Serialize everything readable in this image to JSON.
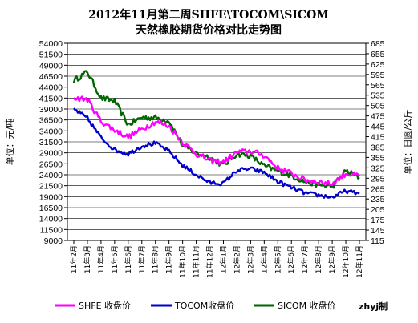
{
  "chart_data": {
    "type": "line",
    "title": "2012年11月第二周SHFE\\TOCOM\\SICOM",
    "subtitle": "天然橡胶期货价格对比走势图",
    "ylabel_left": "单位：元/吨",
    "ylabel_right": "单位：日圆/公斤",
    "ylim_left": [
      9000,
      54000
    ],
    "ylim_right": [
      115,
      685
    ],
    "yticks_left": [
      "54000",
      "51500",
      "49000",
      "46500",
      "44000",
      "41500",
      "39000",
      "36500",
      "34000",
      "31500",
      "29000",
      "26500",
      "24000",
      "21500",
      "19000",
      "16500",
      "14000",
      "11500",
      "9000"
    ],
    "yticks_right": [
      "685",
      "655",
      "625",
      "595",
      "565",
      "535",
      "505",
      "475",
      "445",
      "415",
      "385",
      "355",
      "325",
      "295",
      "265",
      "235",
      "205",
      "175",
      "145",
      "115"
    ],
    "categories": [
      "11年2月",
      "11年3月",
      "11年4月",
      "11年5月",
      "11年6月",
      "11年7月",
      "11年8月",
      "11年9月",
      "11年10月",
      "11年11月",
      "11年12月",
      "12年1月",
      "12年2月",
      "12年3月",
      "12年4月",
      "12年5月",
      "12年6月",
      "12年7月",
      "12年8月",
      "12年9月",
      "12年10月",
      "12年11月"
    ],
    "grid": true,
    "legend_position": "bottom",
    "series": [
      {
        "name": "SHFE 收盘价",
        "axis": "left",
        "color": "#ff00ff",
        "values": [
          41500,
          41200,
          36200,
          34200,
          32600,
          34400,
          36100,
          35100,
          31400,
          28800,
          27200,
          26900,
          29100,
          29400,
          28400,
          25500,
          24300,
          22800,
          22400,
          21900,
          24300,
          23700
        ]
      },
      {
        "name": "TOCOM收盘价",
        "axis": "right",
        "color": "#0000cc",
        "values": [
          495,
          468,
          412,
          377,
          365,
          388,
          396,
          372,
          332,
          305,
          282,
          280,
          318,
          322,
          312,
          285,
          268,
          252,
          246,
          240,
          258,
          250
        ]
      },
      {
        "name": "SICOM 收盘价",
        "axis": "left",
        "color": "#006600",
        "values": [
          45500,
          47500,
          41500,
          40800,
          35400,
          37100,
          37000,
          36300,
          30700,
          28900,
          28000,
          26100,
          28800,
          28300,
          26000,
          24800,
          23800,
          22400,
          21700,
          21300,
          24900,
          23400
        ]
      }
    ],
    "credit": "zhyj制"
  }
}
